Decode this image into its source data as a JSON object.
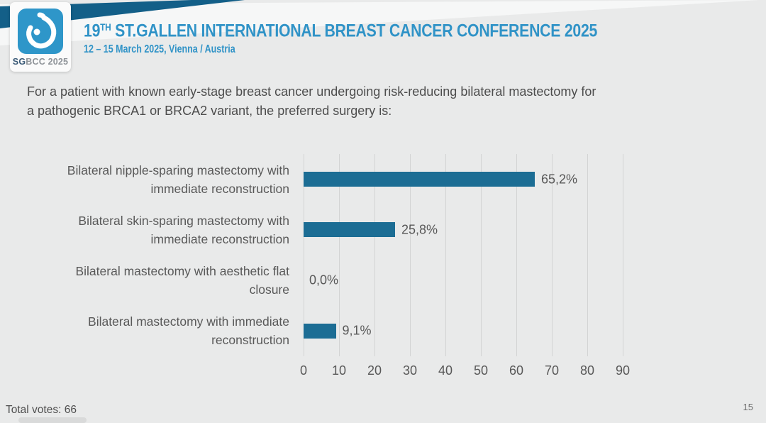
{
  "header": {
    "logo": {
      "text_bold": "SG",
      "text_rest": "BCC 2025"
    },
    "title_number": "19",
    "title_superscript": "TH",
    "title_rest": " ST.GALLEN INTERNATIONAL BREAST CANCER CONFERENCE 2025",
    "subtitle": "12 – 15 March 2025, Vienna / Austria"
  },
  "question": {
    "line1": "For a patient with known early-stage breast cancer undergoing risk-reducing bilateral mastectomy for",
    "line2": "a pathogenic BRCA1 or BRCA2 variant, the preferred surgery is:"
  },
  "chart_data": {
    "type": "bar",
    "orientation": "horizontal",
    "categories": [
      "Bilateral nipple-sparing mastectomy with immediate reconstruction",
      "Bilateral skin-sparing mastectomy with immediate reconstruction",
      "Bilateral mastectomy with aesthetic flat closure",
      "Bilateral mastectomy with immediate reconstruction"
    ],
    "category_lines": [
      [
        "Bilateral nipple-sparing mastectomy with",
        "immediate reconstruction"
      ],
      [
        "Bilateral skin-sparing mastectomy with",
        "immediate reconstruction"
      ],
      [
        "Bilateral mastectomy with aesthetic flat",
        "closure"
      ],
      [
        "Bilateral mastectomy with immediate",
        "reconstruction"
      ]
    ],
    "values": [
      65.2,
      25.8,
      0.0,
      9.1
    ],
    "value_labels": [
      "65,2%",
      "25,8%",
      "0,0%",
      "9,1%"
    ],
    "x_ticks": [
      0,
      10,
      20,
      30,
      40,
      50,
      60,
      70,
      80,
      90
    ],
    "xlim": [
      0,
      97
    ],
    "grid": true,
    "bar_color": "#1c6d94",
    "grid_color": "#d3d4d4",
    "label_color": "#585858"
  },
  "footer": {
    "total_votes": "Total votes: 66",
    "page_number": "15"
  },
  "colors": {
    "accent_blue": "#3093c7",
    "stripe_teal": "#135f88",
    "logo_blue": "#2e96c9",
    "background": "#e9eaea"
  }
}
